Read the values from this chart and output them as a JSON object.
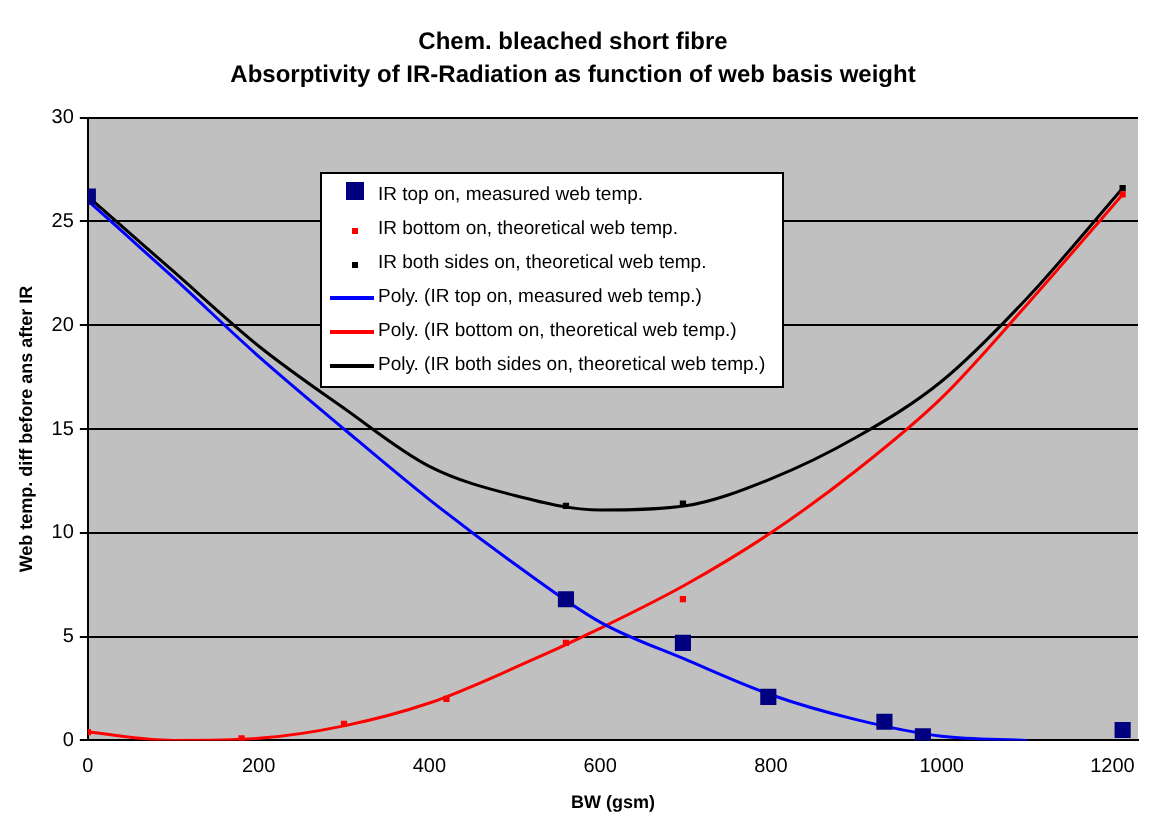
{
  "chart_data": {
    "type": "scatter",
    "title": "Chem. bleached short fibre",
    "subtitle": "Absorptivity of IR-Radiation as function of web basis weight",
    "xlabel": "BW (gsm)",
    "ylabel": "Web temp. diff before ans after IR",
    "xlim": [
      0,
      1230
    ],
    "xticks": [
      0,
      200,
      400,
      600,
      800,
      1000,
      1200
    ],
    "ylim": [
      0,
      30
    ],
    "yticks": [
      0,
      5,
      10,
      15,
      20,
      25,
      30
    ],
    "grid": "y",
    "legend": "top",
    "series": [
      {
        "name": "IR top on, measured web temp.",
        "marker": "square",
        "color": "#000080",
        "x": [
          0,
          560,
          697,
          797,
          933,
          978,
          1212
        ],
        "values": [
          26.2,
          6.8,
          4.7,
          2.1,
          0.9,
          0.2,
          0.5
        ]
      },
      {
        "name": "IR bottom on, theoretical web temp.",
        "marker": "square",
        "color": "#ff0000",
        "x": [
          0,
          180,
          300,
          420,
          560,
          697,
          1212
        ],
        "values": [
          0.4,
          0.1,
          0.8,
          2.0,
          4.7,
          6.8,
          26.3
        ]
      },
      {
        "name": "IR both sides on, theoretical web temp.",
        "marker": "square",
        "color": "#000000",
        "x": [
          560,
          697,
          1212
        ],
        "values": [
          11.3,
          11.4,
          26.6
        ]
      },
      {
        "name": "Poly. (IR top on, measured web temp.)",
        "type": "line",
        "marker": "none",
        "color": "#0000ff",
        "x": [
          0,
          100,
          200,
          300,
          400,
          500,
          600,
          700,
          800,
          900,
          1000,
          1100
        ],
        "values": [
          26,
          22.3,
          18.5,
          15,
          11.6,
          8.5,
          5.7,
          3.9,
          2.2,
          1.0,
          0.2,
          0
        ]
      },
      {
        "name": "Poly. (IR bottom on, theoretical web temp.)",
        "type": "line",
        "marker": "none",
        "color": "#ff0000",
        "x": [
          0,
          100,
          200,
          300,
          400,
          500,
          600,
          700,
          800,
          900,
          1000,
          1100,
          1212
        ],
        "values": [
          0.4,
          0,
          0.1,
          0.7,
          1.8,
          3.5,
          5.4,
          7.5,
          10,
          13,
          16.5,
          21,
          26.3
        ]
      },
      {
        "name": "Poly. (IR both sides on, theoretical web temp.)",
        "type": "line",
        "marker": "none",
        "color": "#000000",
        "x": [
          0,
          100,
          200,
          300,
          400,
          500,
          600,
          700,
          800,
          900,
          1000,
          1100,
          1212
        ],
        "values": [
          26.2,
          22.6,
          19,
          16,
          13.2,
          11.8,
          11.1,
          11.3,
          12.6,
          14.6,
          17.3,
          21.3,
          26.6
        ]
      }
    ]
  }
}
